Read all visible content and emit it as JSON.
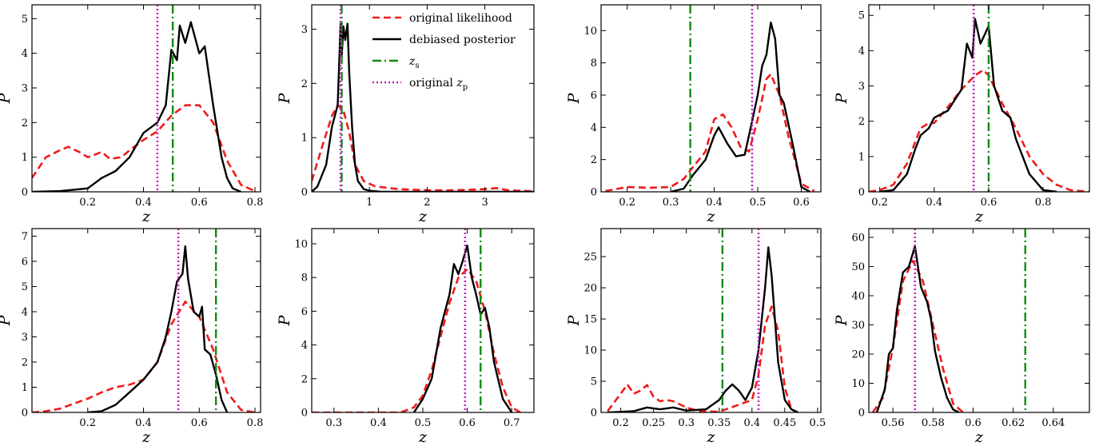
{
  "legend": {
    "items": [
      {
        "label": "original likelihood",
        "color": "#ee1c1c",
        "dash": "dashed"
      },
      {
        "label": "debiased posterior",
        "color": "#000000",
        "dash": "solid"
      },
      {
        "label": "z",
        "sub": "s",
        "color": "#118a11",
        "dash": "dashdot"
      },
      {
        "label": "original z",
        "sub": "p",
        "color": "#c51ec5",
        "dash": "dotted"
      }
    ]
  },
  "chart_data": [
    {
      "type": "line",
      "xlabel": "z",
      "ylabel": "P",
      "xlim": [
        0.0,
        0.82
      ],
      "ylim": [
        0,
        5.4
      ],
      "xticks": [
        0.2,
        0.4,
        0.6,
        0.8
      ],
      "yticks": [
        0,
        1,
        2,
        3,
        4,
        5
      ],
      "z_s": 0.505,
      "z_p": 0.45,
      "series": [
        {
          "name": "original likelihood",
          "x": [
            0.0,
            0.05,
            0.1,
            0.13,
            0.17,
            0.2,
            0.25,
            0.28,
            0.32,
            0.35,
            0.4,
            0.45,
            0.5,
            0.55,
            0.6,
            0.65,
            0.7,
            0.75,
            0.8
          ],
          "values": [
            0.4,
            1.0,
            1.2,
            1.3,
            1.15,
            1.0,
            1.15,
            0.95,
            1.0,
            1.2,
            1.5,
            1.75,
            2.2,
            2.5,
            2.5,
            2.0,
            0.9,
            0.2,
            0.02
          ]
        },
        {
          "name": "debiased posterior",
          "x": [
            0.0,
            0.1,
            0.2,
            0.25,
            0.3,
            0.35,
            0.4,
            0.45,
            0.48,
            0.5,
            0.52,
            0.53,
            0.55,
            0.57,
            0.6,
            0.62,
            0.65,
            0.68,
            0.7,
            0.72,
            0.75
          ],
          "values": [
            0.0,
            0.02,
            0.1,
            0.4,
            0.6,
            1.0,
            1.7,
            2.0,
            2.5,
            4.1,
            3.8,
            4.8,
            4.3,
            4.9,
            4.0,
            4.2,
            2.5,
            1.0,
            0.4,
            0.1,
            0.0
          ]
        }
      ]
    },
    {
      "type": "line",
      "xlabel": "z",
      "ylabel": "P",
      "xlim": [
        0.0,
        3.85
      ],
      "ylim": [
        0,
        3.45
      ],
      "xticks": [
        1,
        2,
        3
      ],
      "yticks": [
        0,
        1,
        2,
        3
      ],
      "z_s": 0.52,
      "z_p": 0.5,
      "series": [
        {
          "name": "original likelihood",
          "x": [
            0.0,
            0.2,
            0.35,
            0.45,
            0.55,
            0.65,
            0.75,
            0.9,
            1.1,
            1.5,
            2.0,
            2.5,
            3.0,
            3.2,
            3.4,
            3.85
          ],
          "values": [
            0.2,
            0.9,
            1.4,
            1.6,
            1.5,
            1.1,
            0.5,
            0.2,
            0.1,
            0.05,
            0.03,
            0.03,
            0.05,
            0.07,
            0.03,
            0.01
          ]
        },
        {
          "name": "debiased posterior",
          "x": [
            0.0,
            0.1,
            0.25,
            0.35,
            0.45,
            0.5,
            0.52,
            0.55,
            0.58,
            0.62,
            0.65,
            0.7,
            0.75,
            0.8,
            0.9,
            1.0,
            1.2,
            3.85
          ],
          "values": [
            0.0,
            0.1,
            0.5,
            1.2,
            1.6,
            3.1,
            2.5,
            3.05,
            2.8,
            3.1,
            2.2,
            1.2,
            0.5,
            0.2,
            0.05,
            0.02,
            0.0,
            0.0
          ]
        }
      ]
    },
    {
      "type": "line",
      "xlabel": "z",
      "ylabel": "P",
      "xlim": [
        0.14,
        0.645
      ],
      "ylim": [
        0,
        11.6
      ],
      "xticks": [
        0.2,
        0.3,
        0.4,
        0.5,
        0.6
      ],
      "yticks": [
        0,
        2,
        4,
        6,
        8,
        10
      ],
      "z_s": 0.345,
      "z_p": 0.487,
      "series": [
        {
          "name": "original likelihood",
          "x": [
            0.15,
            0.18,
            0.2,
            0.25,
            0.3,
            0.33,
            0.35,
            0.38,
            0.4,
            0.42,
            0.44,
            0.46,
            0.48,
            0.5,
            0.52,
            0.53,
            0.55,
            0.57,
            0.6,
            0.63
          ],
          "values": [
            0.05,
            0.2,
            0.3,
            0.25,
            0.3,
            0.8,
            1.5,
            2.5,
            4.5,
            4.8,
            4.0,
            2.8,
            2.5,
            4.5,
            7.0,
            7.3,
            6.0,
            3.5,
            0.5,
            0.05
          ]
        },
        {
          "name": "debiased posterior",
          "x": [
            0.3,
            0.33,
            0.35,
            0.38,
            0.4,
            0.41,
            0.43,
            0.45,
            0.47,
            0.48,
            0.5,
            0.51,
            0.52,
            0.53,
            0.54,
            0.55,
            0.56,
            0.58,
            0.6,
            0.62
          ],
          "values": [
            0.0,
            0.2,
            1.0,
            2.0,
            3.5,
            4.0,
            3.0,
            2.2,
            2.3,
            3.5,
            6.0,
            7.8,
            8.5,
            10.5,
            9.5,
            6.0,
            5.5,
            3.0,
            0.3,
            0.0
          ]
        }
      ]
    },
    {
      "type": "line",
      "xlabel": "z",
      "ylabel": "P",
      "xlim": [
        0.16,
        0.97
      ],
      "ylim": [
        0,
        5.3
      ],
      "xticks": [
        0.2,
        0.4,
        0.6,
        0.8
      ],
      "yticks": [
        0,
        1,
        2,
        3,
        4,
        5
      ],
      "z_s": 0.6,
      "z_p": 0.545,
      "series": [
        {
          "name": "original likelihood",
          "x": [
            0.16,
            0.2,
            0.25,
            0.3,
            0.35,
            0.38,
            0.4,
            0.45,
            0.5,
            0.55,
            0.58,
            0.6,
            0.65,
            0.7,
            0.75,
            0.8,
            0.85,
            0.9,
            0.97
          ],
          "values": [
            0.0,
            0.05,
            0.2,
            0.8,
            1.8,
            1.95,
            1.95,
            2.4,
            2.9,
            3.3,
            3.45,
            3.3,
            2.5,
            1.8,
            1.0,
            0.5,
            0.2,
            0.05,
            0.0
          ]
        },
        {
          "name": "debiased posterior",
          "x": [
            0.2,
            0.25,
            0.3,
            0.33,
            0.35,
            0.38,
            0.4,
            0.45,
            0.5,
            0.52,
            0.54,
            0.55,
            0.57,
            0.6,
            0.62,
            0.65,
            0.68,
            0.7,
            0.75,
            0.8,
            0.85
          ],
          "values": [
            0.0,
            0.05,
            0.5,
            1.2,
            1.6,
            1.8,
            2.1,
            2.3,
            2.9,
            4.2,
            3.8,
            4.9,
            4.2,
            4.7,
            3.0,
            2.3,
            2.1,
            1.5,
            0.5,
            0.05,
            0.0
          ]
        }
      ]
    },
    {
      "type": "line",
      "xlabel": "z",
      "ylabel": "P",
      "xlim": [
        0.0,
        0.82
      ],
      "ylim": [
        0,
        7.3
      ],
      "xticks": [
        0.2,
        0.4,
        0.6,
        0.8
      ],
      "yticks": [
        0,
        1,
        2,
        3,
        4,
        5,
        6,
        7
      ],
      "z_s": 0.66,
      "z_p": 0.525,
      "series": [
        {
          "name": "original likelihood",
          "x": [
            0.0,
            0.05,
            0.1,
            0.15,
            0.2,
            0.25,
            0.3,
            0.35,
            0.4,
            0.45,
            0.5,
            0.55,
            0.6,
            0.65,
            0.7,
            0.75,
            0.8
          ],
          "values": [
            0.0,
            0.05,
            0.15,
            0.35,
            0.55,
            0.8,
            1.0,
            1.1,
            1.3,
            2.0,
            3.5,
            4.4,
            3.8,
            2.5,
            0.8,
            0.1,
            0.0
          ]
        },
        {
          "name": "debiased posterior",
          "x": [
            0.2,
            0.25,
            0.3,
            0.35,
            0.4,
            0.45,
            0.48,
            0.5,
            0.52,
            0.54,
            0.55,
            0.56,
            0.58,
            0.6,
            0.61,
            0.62,
            0.64,
            0.66,
            0.68,
            0.7
          ],
          "values": [
            0.0,
            0.05,
            0.3,
            0.8,
            1.3,
            2.0,
            3.0,
            4.0,
            5.2,
            5.5,
            6.6,
            5.3,
            4.0,
            3.8,
            4.2,
            2.5,
            2.3,
            1.5,
            0.5,
            0.0
          ]
        }
      ]
    },
    {
      "type": "line",
      "xlabel": "z",
      "ylabel": "P",
      "xlim": [
        0.25,
        0.75
      ],
      "ylim": [
        0,
        10.9
      ],
      "xticks": [
        0.3,
        0.4,
        0.5,
        0.6,
        0.7
      ],
      "yticks": [
        0,
        2,
        4,
        6,
        8,
        10
      ],
      "z_s": 0.63,
      "z_p": 0.595,
      "series": [
        {
          "name": "original likelihood",
          "x": [
            0.25,
            0.45,
            0.48,
            0.5,
            0.52,
            0.54,
            0.56,
            0.58,
            0.6,
            0.62,
            0.64,
            0.66,
            0.68,
            0.7,
            0.72
          ],
          "values": [
            0.0,
            0.0,
            0.3,
            1.0,
            2.5,
            4.5,
            6.5,
            8.0,
            8.5,
            7.8,
            6.0,
            3.5,
            1.5,
            0.3,
            0.0
          ]
        },
        {
          "name": "debiased posterior",
          "x": [
            0.48,
            0.5,
            0.52,
            0.54,
            0.56,
            0.57,
            0.58,
            0.59,
            0.6,
            0.61,
            0.62,
            0.63,
            0.64,
            0.65,
            0.66,
            0.68,
            0.7
          ],
          "values": [
            0.0,
            0.8,
            2.0,
            5.0,
            7.0,
            8.8,
            8.2,
            9.0,
            9.9,
            8.0,
            7.0,
            5.8,
            6.2,
            5.0,
            3.0,
            0.8,
            0.0
          ]
        }
      ]
    },
    {
      "type": "line",
      "xlabel": "z",
      "ylabel": "P",
      "xlim": [
        0.17,
        0.505
      ],
      "ylim": [
        0,
        29.5
      ],
      "xticks": [
        0.2,
        0.25,
        0.3,
        0.35,
        0.4,
        0.45,
        0.5
      ],
      "yticks": [
        0,
        5,
        10,
        15,
        20,
        25
      ],
      "z_s": 0.355,
      "z_p": 0.41,
      "series": [
        {
          "name": "original likelihood",
          "x": [
            0.18,
            0.2,
            0.21,
            0.22,
            0.23,
            0.24,
            0.25,
            0.26,
            0.27,
            0.28,
            0.3,
            0.32,
            0.35,
            0.4,
            0.41,
            0.42,
            0.43,
            0.44,
            0.45,
            0.46,
            0.47
          ],
          "values": [
            0.2,
            3.0,
            4.5,
            3.0,
            3.5,
            4.4,
            2.5,
            1.8,
            2.0,
            1.8,
            0.8,
            0.2,
            0.1,
            2.0,
            6.0,
            14.0,
            17.0,
            13.0,
            4.0,
            0.5,
            0.0
          ]
        },
        {
          "name": "debiased posterior",
          "x": [
            0.18,
            0.22,
            0.24,
            0.26,
            0.28,
            0.3,
            0.33,
            0.35,
            0.36,
            0.37,
            0.38,
            0.39,
            0.4,
            0.41,
            0.42,
            0.425,
            0.43,
            0.44,
            0.45,
            0.46,
            0.47
          ],
          "values": [
            0.0,
            0.2,
            0.8,
            0.5,
            0.8,
            0.3,
            0.5,
            2.0,
            3.5,
            4.5,
            3.5,
            2.0,
            4.0,
            10.0,
            20.0,
            26.5,
            22.0,
            8.0,
            2.0,
            0.5,
            0.0
          ]
        }
      ]
    },
    {
      "type": "line",
      "xlabel": "z",
      "ylabel": "P",
      "xlim": [
        0.548,
        0.658
      ],
      "ylim": [
        0,
        63
      ],
      "xticks": [
        0.56,
        0.58,
        0.6,
        0.62,
        0.64
      ],
      "yticks": [
        0,
        10,
        20,
        30,
        40,
        50,
        60
      ],
      "z_s": 0.626,
      "z_p": 0.571,
      "series": [
        {
          "name": "original likelihood",
          "x": [
            0.55,
            0.555,
            0.56,
            0.565,
            0.57,
            0.575,
            0.58,
            0.585,
            0.59,
            0.595
          ],
          "values": [
            0.0,
            5.0,
            22.0,
            45.0,
            52.0,
            45.0,
            30.0,
            15.0,
            3.0,
            0.0
          ]
        },
        {
          "name": "debiased posterior",
          "x": [
            0.552,
            0.556,
            0.558,
            0.56,
            0.562,
            0.565,
            0.568,
            0.571,
            0.574,
            0.577,
            0.579,
            0.581,
            0.584,
            0.587,
            0.59,
            0.593
          ],
          "values": [
            0.0,
            8.0,
            20.0,
            22.0,
            35.0,
            48.0,
            50.0,
            57.0,
            43.0,
            38.0,
            32.0,
            21.0,
            12.0,
            5.0,
            1.0,
            0.0
          ]
        }
      ]
    }
  ]
}
